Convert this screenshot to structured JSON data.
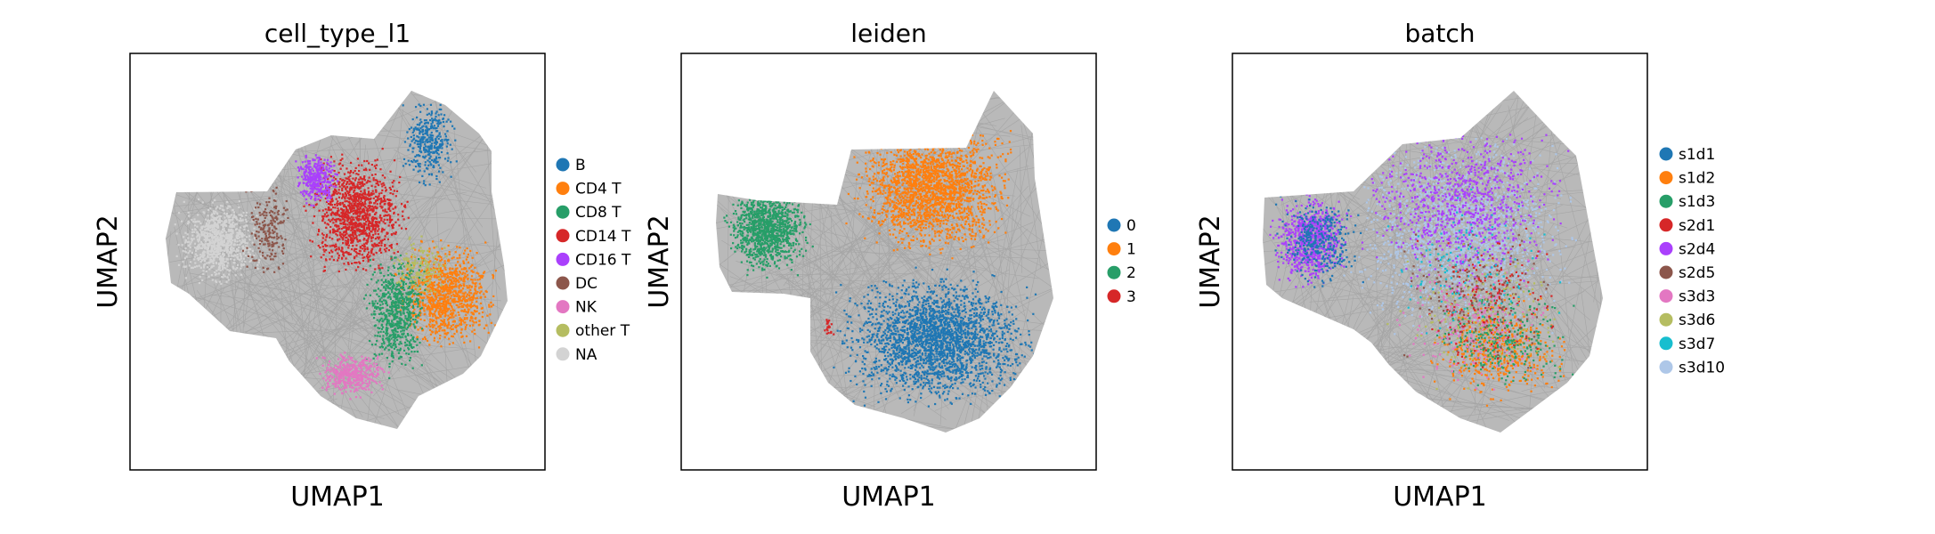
{
  "chart_data": [
    {
      "type": "scatter",
      "title": "cell_type_l1",
      "xlabel": "UMAP1",
      "ylabel": "UMAP2",
      "grid": false,
      "legend_position": "right",
      "categories": [
        "B",
        "CD4 T",
        "CD8 T",
        "CD14 T",
        "CD16 T",
        "DC",
        "NK",
        "other T",
        "NA"
      ],
      "colors": [
        "#1f77b4",
        "#ff7f0e",
        "#279e68",
        "#d62728",
        "#aa40fc",
        "#8c564b",
        "#e377c2",
        "#b5bd61",
        "#d3d3d3"
      ],
      "background_edges_color": "#808080"
    },
    {
      "type": "scatter",
      "title": "leiden",
      "xlabel": "UMAP1",
      "ylabel": "UMAP2",
      "grid": false,
      "legend_position": "right",
      "categories": [
        "0",
        "1",
        "2",
        "3"
      ],
      "colors": [
        "#1f77b4",
        "#ff7f0e",
        "#279e68",
        "#d62728"
      ],
      "background_edges_color": "#808080"
    },
    {
      "type": "scatter",
      "title": "batch",
      "xlabel": "UMAP1",
      "ylabel": "UMAP2",
      "grid": false,
      "legend_position": "right",
      "categories": [
        "s1d1",
        "s1d2",
        "s1d3",
        "s2d1",
        "s2d4",
        "s2d5",
        "s3d3",
        "s3d6",
        "s3d7",
        "s3d10"
      ],
      "colors": [
        "#1f77b4",
        "#ff7f0e",
        "#279e68",
        "#d62728",
        "#aa40fc",
        "#8c564b",
        "#e377c2",
        "#b5bd61",
        "#17becf",
        "#aec7e8"
      ],
      "background_edges_color": "#808080"
    }
  ]
}
